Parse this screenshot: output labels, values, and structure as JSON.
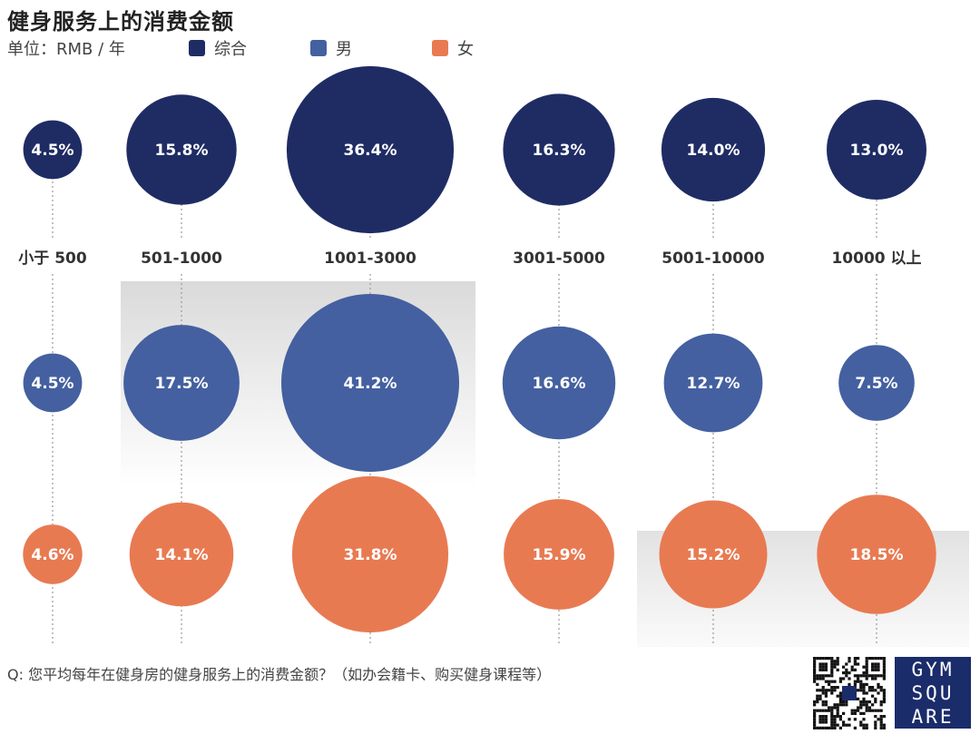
{
  "title": "健身服务上的消费金额",
  "unit": "单位：RMB / 年",
  "legend": [
    {
      "label": "综合",
      "color": "#1f2c64"
    },
    {
      "label": "男",
      "color": "#4460a0"
    },
    {
      "label": "女",
      "color": "#e87a52"
    }
  ],
  "question": "Q: 您平均每年在健身房的健身服务上的消费金额？（如办会籍卡、购买健身课程等）",
  "logo": {
    "lines": [
      "GYM",
      "SQU",
      "ARE"
    ]
  },
  "chart_data": {
    "type": "bubble",
    "categories": [
      "小于 500",
      "501-1000",
      "1001-3000",
      "3001-5000",
      "5001-10000",
      "10000 以上"
    ],
    "series": [
      {
        "name": "综合",
        "color": "#1f2c64",
        "values": [
          4.5,
          15.8,
          36.4,
          16.3,
          14.0,
          13.0
        ],
        "labels": [
          "4.5%",
          "15.8%",
          "36.4%",
          "16.3%",
          "14.0%",
          "13.0%"
        ]
      },
      {
        "name": "男",
        "color": "#4460a0",
        "values": [
          4.5,
          17.5,
          41.2,
          16.6,
          12.7,
          7.5
        ],
        "labels": [
          "4.5%",
          "17.5%",
          "41.2%",
          "16.6%",
          "12.7%",
          "7.5%"
        ]
      },
      {
        "name": "女",
        "color": "#e87a52",
        "values": [
          4.6,
          14.1,
          31.8,
          15.9,
          15.2,
          18.5
        ],
        "labels": [
          "4.6%",
          "14.1%",
          "31.8%",
          "15.9%",
          "15.2%",
          "18.5%"
        ]
      }
    ]
  }
}
